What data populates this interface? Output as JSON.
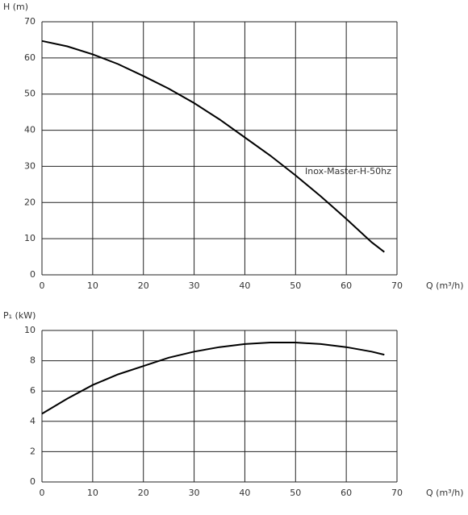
{
  "chart_data": [
    {
      "type": "line",
      "ylabel": "H (m)",
      "xlabel": "Q (m³/h)",
      "x": [
        0,
        5,
        10,
        15,
        20,
        25,
        30,
        35,
        40,
        45,
        50,
        55,
        60,
        65,
        67.5
      ],
      "series": [
        {
          "name": "Inox-Master-H-50hz",
          "color": "#000000",
          "values": [
            64.7,
            63.2,
            61,
            58.3,
            55,
            51.5,
            47.5,
            43,
            38,
            33,
            27.5,
            21.7,
            15.5,
            9,
            6.3
          ]
        }
      ],
      "xlim": [
        0,
        70
      ],
      "xticks": [
        0,
        10,
        20,
        30,
        40,
        50,
        60,
        70
      ],
      "ylim": [
        0,
        70
      ],
      "yticks": [
        0,
        10,
        20,
        30,
        40,
        50,
        60,
        70
      ],
      "grid": true
    },
    {
      "type": "line",
      "ylabel": "P₁ (kW)",
      "xlabel": "Q (m³/h)",
      "x": [
        0,
        5,
        10,
        15,
        20,
        25,
        30,
        35,
        40,
        45,
        50,
        55,
        60,
        65,
        67.5
      ],
      "series": [
        {
          "color": "#000000",
          "values": [
            4.5,
            5.5,
            6.4,
            7.1,
            7.65,
            8.2,
            8.6,
            8.9,
            9.1,
            9.2,
            9.2,
            9.1,
            8.9,
            8.6,
            8.4
          ]
        }
      ],
      "xlim": [
        0,
        70
      ],
      "xticks": [
        0,
        10,
        20,
        30,
        40,
        50,
        60,
        70
      ],
      "ylim": [
        0,
        10
      ],
      "yticks": [
        0,
        2,
        4,
        6,
        8,
        10
      ],
      "grid": true
    }
  ]
}
